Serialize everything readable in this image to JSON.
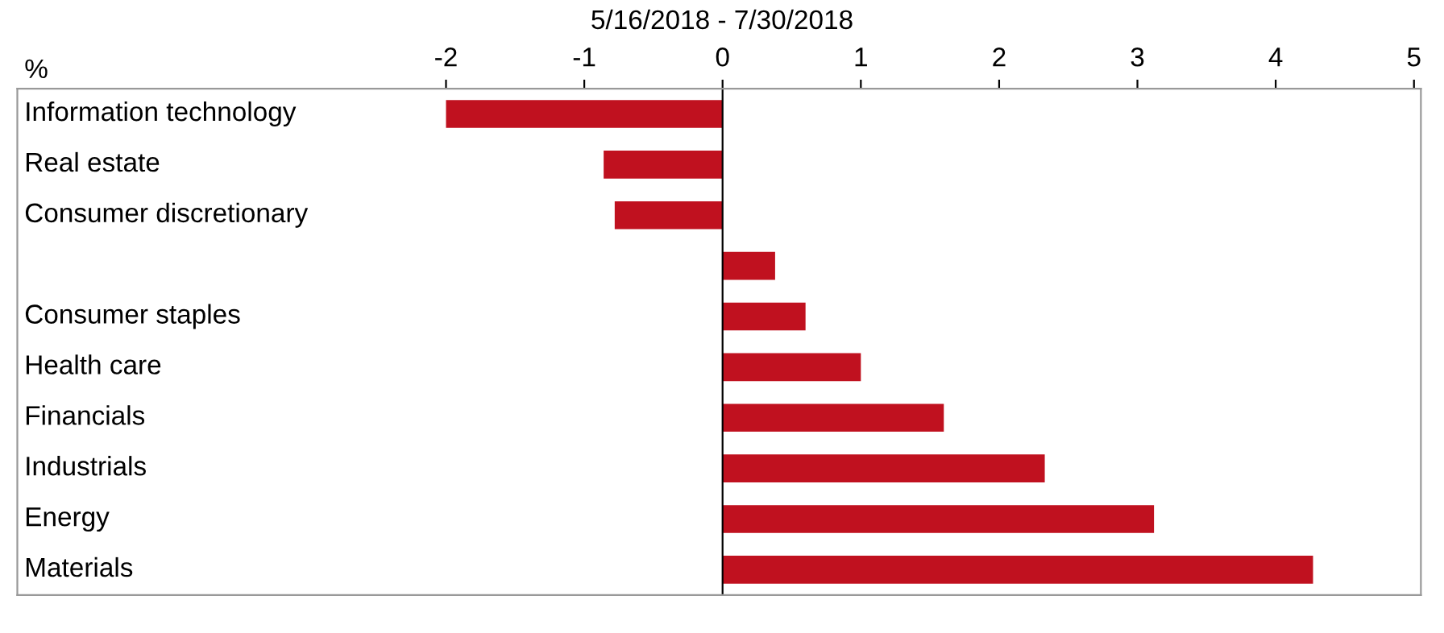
{
  "chart_data": {
    "type": "bar",
    "orientation": "horizontal",
    "title": "5/16/2018 - 7/30/2018",
    "xlabel": "%",
    "categories": [
      "Information technology",
      "Real estate",
      "Consumer discretionary",
      null,
      "Consumer staples",
      "Health care",
      "Financials",
      "Industrials",
      "Energy",
      "Materials"
    ],
    "values": [
      -2.0,
      -0.86,
      -0.78,
      0.38,
      0.6,
      1.0,
      1.6,
      2.33,
      3.12,
      4.27
    ],
    "color": "#c0111f",
    "xlim": [
      -5.1,
      5.05
    ],
    "xticks": [
      -2,
      -1,
      0,
      1,
      2,
      3,
      4,
      5
    ],
    "ref_lines": [
      {
        "axis": "x",
        "value": 0,
        "color": "#000000"
      }
    ],
    "grid": false
  }
}
